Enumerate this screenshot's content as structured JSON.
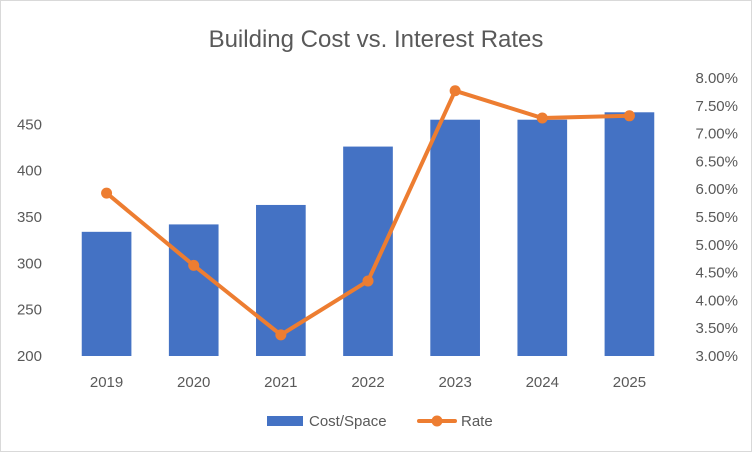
{
  "chart_data": {
    "type": "bar",
    "title": "Building Cost vs. Interest Rates",
    "categories": [
      "2019",
      "2020",
      "2021",
      "2022",
      "2023",
      "2024",
      "2025"
    ],
    "series": [
      {
        "name": "Cost/Space",
        "type": "bar",
        "axis": "left",
        "color": "#4472C4",
        "values": [
          334,
          342,
          363,
          426,
          455,
          455,
          463
        ]
      },
      {
        "name": "Rate",
        "type": "line",
        "axis": "right",
        "color": "#ED7D31",
        "values": [
          5.93,
          4.63,
          3.38,
          4.35,
          7.77,
          7.28,
          7.32
        ]
      }
    ],
    "y_left": {
      "ylim": [
        200,
        500
      ],
      "ticks": [
        200,
        250,
        300,
        350,
        400,
        450
      ],
      "tick_labels": [
        "200",
        "250",
        "300",
        "350",
        "400",
        "450"
      ]
    },
    "y_right": {
      "ylim": [
        3.0,
        8.0
      ],
      "ticks": [
        3.0,
        3.5,
        4.0,
        4.5,
        5.0,
        5.5,
        6.0,
        6.5,
        7.0,
        7.5,
        8.0
      ],
      "tick_labels": [
        "3.00%",
        "3.50%",
        "4.00%",
        "4.50%",
        "5.00%",
        "5.50%",
        "6.00%",
        "6.50%",
        "7.00%",
        "7.50%",
        "8.00%"
      ]
    },
    "grid": false,
    "legend": "bottom"
  }
}
